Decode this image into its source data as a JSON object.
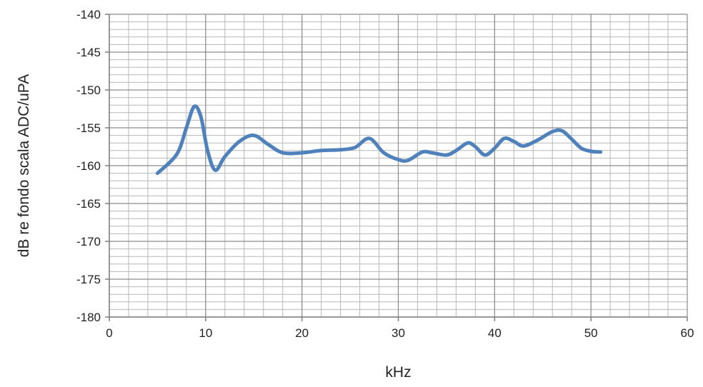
{
  "chart_data": {
    "type": "line",
    "title": "",
    "xlabel": "kHz",
    "ylabel": "dB re fondo scala ADC/uPA",
    "xlim": [
      0,
      60
    ],
    "ylim": [
      -180,
      -140
    ],
    "x_ticks": [
      0,
      10,
      20,
      30,
      40,
      50,
      60
    ],
    "y_ticks": [
      -140,
      -145,
      -150,
      -155,
      -160,
      -165,
      -170,
      -175,
      -180
    ],
    "grid": true,
    "legend": "none",
    "series": [
      {
        "color": "#4f81bd",
        "x": [
          5,
          7,
          8,
          8.8,
          9.5,
          10.2,
          11,
          12,
          13.5,
          15,
          16.5,
          18,
          20,
          22,
          24,
          25.5,
          27,
          28.5,
          30,
          31,
          32.5,
          33.5,
          35,
          36,
          37.2,
          38,
          39,
          40,
          41,
          42,
          43,
          44.5,
          46,
          47,
          48,
          49,
          50,
          51
        ],
        "y": [
          -161,
          -158.5,
          -155,
          -152.2,
          -153.5,
          -158,
          -160.6,
          -158.8,
          -156.8,
          -156,
          -157.2,
          -158.3,
          -158.3,
          -158,
          -157.9,
          -157.6,
          -156.4,
          -158.3,
          -159.2,
          -159.3,
          -158.2,
          -158.3,
          -158.6,
          -158,
          -157,
          -157.5,
          -158.6,
          -157.7,
          -156.4,
          -156.8,
          -157.4,
          -156.6,
          -155.5,
          -155.4,
          -156.5,
          -157.7,
          -158.1,
          -158.2
        ]
      }
    ]
  }
}
